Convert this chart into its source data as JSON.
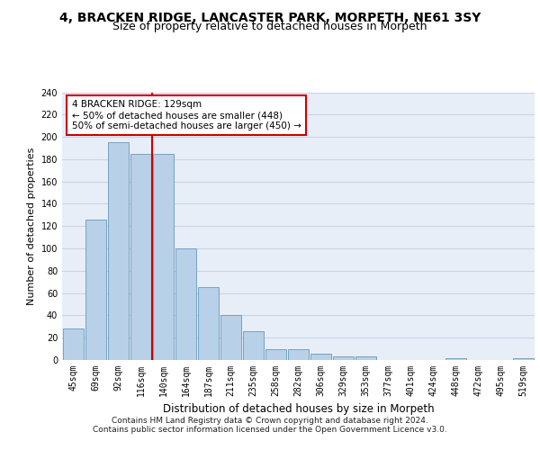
{
  "title_line1": "4, BRACKEN RIDGE, LANCASTER PARK, MORPETH, NE61 3SY",
  "title_line2": "Size of property relative to detached houses in Morpeth",
  "xlabel": "Distribution of detached houses by size in Morpeth",
  "ylabel": "Number of detached properties",
  "categories": [
    "45sqm",
    "69sqm",
    "92sqm",
    "116sqm",
    "140sqm",
    "164sqm",
    "187sqm",
    "211sqm",
    "235sqm",
    "258sqm",
    "282sqm",
    "306sqm",
    "329sqm",
    "353sqm",
    "377sqm",
    "401sqm",
    "424sqm",
    "448sqm",
    "472sqm",
    "495sqm",
    "519sqm"
  ],
  "values": [
    28,
    126,
    195,
    185,
    185,
    100,
    65,
    40,
    26,
    10,
    10,
    6,
    3,
    3,
    0,
    0,
    0,
    2,
    0,
    0,
    2
  ],
  "bar_color": "#b8d0e8",
  "bar_edge_color": "#6699bb",
  "vline_x_index": 3.5,
  "vline_color": "#cc0000",
  "annotation_text": "4 BRACKEN RIDGE: 129sqm\n← 50% of detached houses are smaller (448)\n50% of semi-detached houses are larger (450) →",
  "annotation_box_color": "#ffffff",
  "annotation_box_edge": "#cc0000",
  "ylim": [
    0,
    240
  ],
  "yticks": [
    0,
    20,
    40,
    60,
    80,
    100,
    120,
    140,
    160,
    180,
    200,
    220,
    240
  ],
  "grid_color": "#c8d4e4",
  "bg_color": "#e8eef8",
  "footer_line1": "Contains HM Land Registry data © Crown copyright and database right 2024.",
  "footer_line2": "Contains public sector information licensed under the Open Government Licence v3.0.",
  "title1_fontsize": 10,
  "title2_fontsize": 9,
  "xlabel_fontsize": 8.5,
  "ylabel_fontsize": 8,
  "tick_fontsize": 7,
  "annot_fontsize": 7.5,
  "footer_fontsize": 6.5
}
